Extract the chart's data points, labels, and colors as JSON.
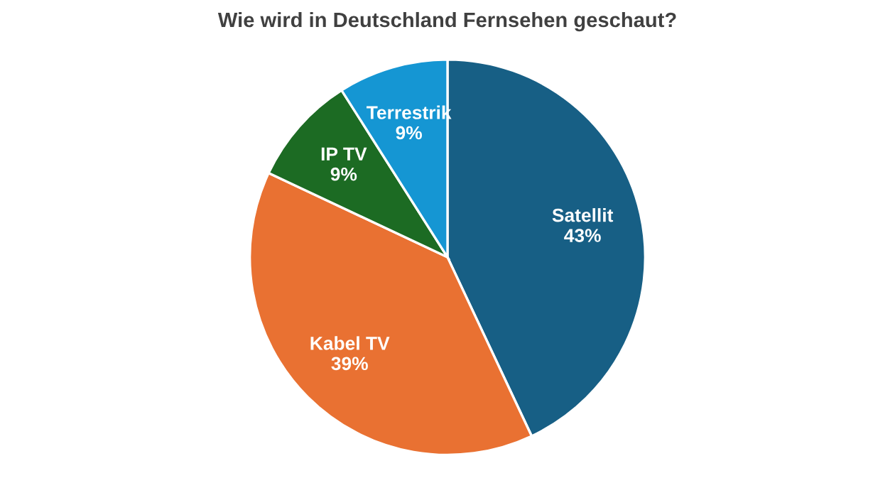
{
  "chart_data": {
    "type": "pie",
    "title": "Wie wird in Deutschland Fernsehen geschaut?",
    "categories": [
      "Satellit",
      "Kabel TV",
      "IP TV",
      "Terrestrik"
    ],
    "values": [
      43,
      39,
      9,
      9
    ],
    "value_labels": [
      "43%",
      "39%",
      "9%",
      "9%"
    ],
    "colors": [
      "#175f85",
      "#e97132",
      "#1c6b23",
      "#1596d3"
    ],
    "legend": false
  }
}
